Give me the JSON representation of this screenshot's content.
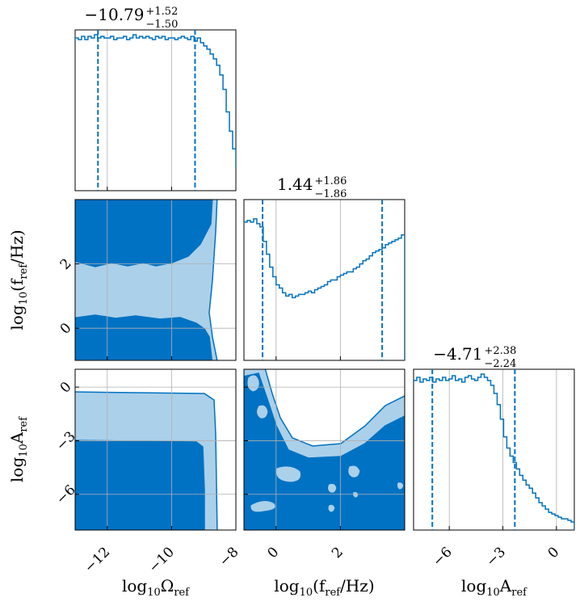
{
  "colors": {
    "line": "#0072c1",
    "inner": "#0072c4",
    "outer": "#abd0ea",
    "grid": "#b0b0b0"
  },
  "chart_data": {
    "type": "corner",
    "parameters": [
      {
        "key": "omega",
        "label_base": "log",
        "label_sub": "10",
        "label_main": "Ω",
        "label_main_sub": "ref",
        "range": [
          -13.0,
          -8.0
        ],
        "ticks": [
          -12,
          -10,
          -8
        ],
        "tick_labels": [
          "−12",
          "−10",
          "−8"
        ],
        "title_value": "−10.79",
        "title_plus": "+1.52",
        "title_minus": "−1.50",
        "quantiles": [
          -12.29,
          -9.27
        ],
        "hist_x0": -13.0,
        "hist_dx": 0.1,
        "hist": [
          0.95,
          0.94,
          0.96,
          0.94,
          0.96,
          0.95,
          0.97,
          0.95,
          0.96,
          0.95,
          0.95,
          0.96,
          0.94,
          0.95,
          0.95,
          0.96,
          0.94,
          0.95,
          0.97,
          0.95,
          0.96,
          0.95,
          0.96,
          0.95,
          0.94,
          0.96,
          0.95,
          0.96,
          0.94,
          0.95,
          0.95,
          0.94,
          0.95,
          0.96,
          0.95,
          0.94,
          0.96,
          0.93,
          0.95,
          0.92,
          0.9,
          0.88,
          0.85,
          0.82,
          0.78,
          0.72,
          0.63,
          0.49,
          0.37,
          0.26,
          0.14,
          0.05,
          0.02
        ]
      },
      {
        "key": "fref",
        "label_base": "log",
        "label_sub": "10",
        "label_main": "(f",
        "label_main_sub": "ref",
        "label_tail": "/Hz)",
        "range": [
          -1.0,
          4.0
        ],
        "ticks": [
          0,
          2
        ],
        "tick_labels": [
          "0",
          "2"
        ],
        "title_value": "1.44",
        "title_plus": "+1.86",
        "title_minus": "−1.86",
        "quantiles": [
          -0.42,
          3.3
        ],
        "hist_x0": -1.0,
        "hist_dx": 0.1,
        "hist": [
          0.86,
          0.87,
          0.86,
          0.88,
          0.85,
          0.83,
          0.74,
          0.66,
          0.58,
          0.52,
          0.47,
          0.45,
          0.42,
          0.4,
          0.41,
          0.39,
          0.4,
          0.41,
          0.41,
          0.42,
          0.43,
          0.42,
          0.44,
          0.45,
          0.46,
          0.47,
          0.49,
          0.5,
          0.5,
          0.52,
          0.53,
          0.54,
          0.55,
          0.55,
          0.57,
          0.58,
          0.6,
          0.62,
          0.63,
          0.65,
          0.67,
          0.68,
          0.69,
          0.7,
          0.72,
          0.73,
          0.74,
          0.75,
          0.76,
          0.78
        ]
      },
      {
        "key": "amp",
        "label_base": "log",
        "label_sub": "10",
        "label_main": "A",
        "label_main_sub": "ref",
        "range": [
          -8.0,
          1.0
        ],
        "ticks": [
          -6,
          -3,
          0
        ],
        "tick_labels": [
          "−6",
          "−3",
          "0"
        ],
        "title_value": "−4.71",
        "title_plus": "+2.38",
        "title_minus": "−2.24",
        "quantiles": [
          -6.95,
          -2.33
        ],
        "hist_x0": -8.0,
        "hist_dx": 0.18,
        "hist": [
          0.93,
          0.95,
          0.92,
          0.94,
          0.93,
          0.95,
          0.92,
          0.94,
          0.93,
          0.95,
          0.93,
          0.94,
          0.96,
          0.93,
          0.94,
          0.92,
          0.95,
          0.96,
          0.94,
          0.93,
          0.95,
          0.97,
          0.95,
          0.93,
          0.9,
          0.85,
          0.78,
          0.69,
          0.58,
          0.51,
          0.46,
          0.42,
          0.38,
          0.34,
          0.31,
          0.28,
          0.26,
          0.23,
          0.2,
          0.17,
          0.15,
          0.13,
          0.11,
          0.1,
          0.09,
          0.08,
          0.07,
          0.07,
          0.06,
          0.05
        ]
      }
    ]
  }
}
